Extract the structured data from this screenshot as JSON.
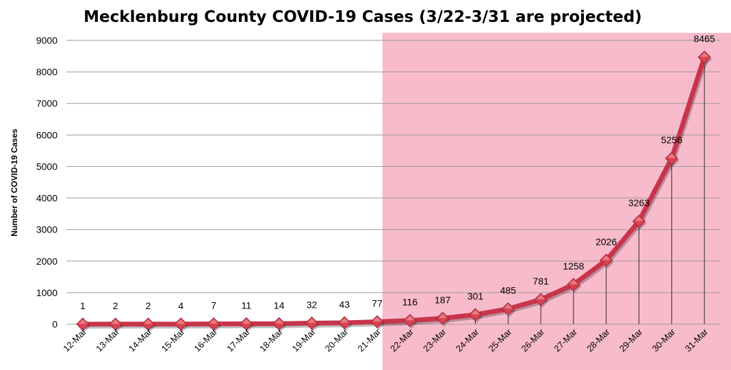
{
  "chart_data": {
    "type": "line",
    "title": "Mecklenburg County COVID-19 Cases (3/22-3/31 are projected)",
    "ylabel": "Number of COVID-19 Cases",
    "xlabel": "",
    "ylim": [
      0,
      9000
    ],
    "yticks": [
      0,
      1000,
      2000,
      3000,
      4000,
      5000,
      6000,
      7000,
      8000,
      9000
    ],
    "grid": true,
    "legend": "none",
    "categories": [
      "12-Mar",
      "13-Mar",
      "14-Mar",
      "15-Mar",
      "16-Mar",
      "17-Mar",
      "18-Mar",
      "19-Mar",
      "20-Mar",
      "21-Mar",
      "22-Mar",
      "23-Mar",
      "24-Mar",
      "25-Mar",
      "26-Mar",
      "27-Mar",
      "28-Mar",
      "29-Mar",
      "30-Mar",
      "31-Mar"
    ],
    "values": [
      1,
      2,
      2,
      4,
      7,
      11,
      14,
      32,
      43,
      77,
      116,
      187,
      301,
      485,
      781,
      1258,
      2026,
      3263,
      5256,
      8465
    ],
    "projected_range": [
      "22-Mar",
      "31-Mar"
    ],
    "colors": {
      "line": "#c8354b",
      "marker": "#d9424f",
      "projection_band": "#f8bbcc",
      "grid": "#9a9a9a"
    }
  }
}
